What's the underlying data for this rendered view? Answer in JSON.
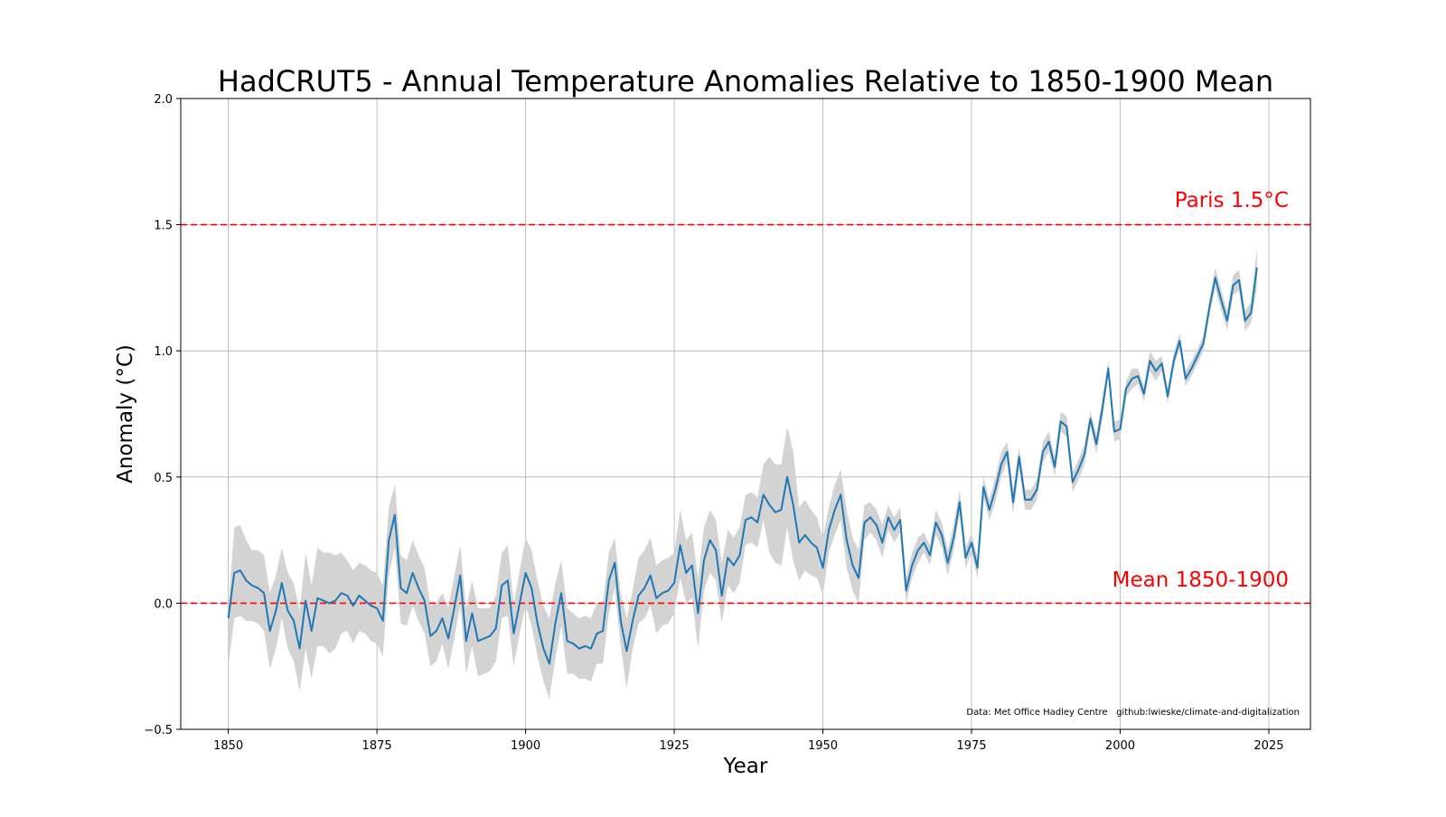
{
  "chart_data": {
    "type": "line",
    "title": "HadCRUT5 - Annual Temperature Anomalies Relative to 1850-1900 Mean",
    "xlabel": "Year",
    "ylabel": "Anomaly (°C)",
    "xlim": [
      1842,
      2032
    ],
    "ylim": [
      -0.5,
      2.0
    ],
    "x_ticks": [
      1850,
      1875,
      1900,
      1925,
      1950,
      1975,
      2000,
      2025
    ],
    "y_ticks": [
      -0.5,
      0.0,
      0.5,
      1.0,
      1.5,
      2.0
    ],
    "y_tick_labels": [
      "−0.5",
      "0.0",
      "0.5",
      "1.0",
      "1.5",
      "2.0"
    ],
    "grid": true,
    "series": [
      {
        "x_start": 1850,
        "x_step": 1,
        "color": "#1f77b4",
        "values": [
          -0.06,
          0.12,
          0.13,
          0.09,
          0.07,
          0.06,
          0.04,
          -0.11,
          -0.03,
          0.08,
          -0.03,
          -0.07,
          -0.18,
          0.01,
          -0.11,
          0.02,
          0.01,
          0.0,
          0.01,
          0.04,
          0.03,
          -0.01,
          0.03,
          0.01,
          -0.01,
          -0.02,
          -0.07,
          0.25,
          0.35,
          0.06,
          0.04,
          0.12,
          0.06,
          0.01,
          -0.13,
          -0.11,
          -0.06,
          -0.14,
          -0.02,
          0.11,
          -0.15,
          -0.04,
          -0.15,
          -0.14,
          -0.13,
          -0.1,
          0.07,
          0.09,
          -0.12,
          0.0,
          0.12,
          0.06,
          -0.08,
          -0.18,
          -0.24,
          -0.08,
          0.04,
          -0.15,
          -0.16,
          -0.18,
          -0.17,
          -0.18,
          -0.12,
          -0.11,
          0.09,
          0.16,
          -0.07,
          -0.19,
          -0.07,
          0.03,
          0.06,
          0.11,
          0.02,
          0.04,
          0.05,
          0.08,
          0.23,
          0.12,
          0.15,
          -0.04,
          0.17,
          0.25,
          0.21,
          0.03,
          0.18,
          0.15,
          0.19,
          0.33,
          0.34,
          0.32,
          0.43,
          0.39,
          0.36,
          0.37,
          0.5,
          0.39,
          0.24,
          0.27,
          0.24,
          0.22,
          0.14,
          0.29,
          0.37,
          0.43,
          0.25,
          0.15,
          0.1,
          0.32,
          0.34,
          0.31,
          0.24,
          0.34,
          0.29,
          0.33,
          0.05,
          0.15,
          0.21,
          0.24,
          0.19,
          0.32,
          0.27,
          0.16,
          0.26,
          0.4,
          0.18,
          0.24,
          0.14,
          0.46,
          0.37,
          0.45,
          0.55,
          0.6,
          0.4,
          0.58,
          0.41,
          0.41,
          0.45,
          0.6,
          0.64,
          0.54,
          0.72,
          0.7,
          0.48,
          0.53,
          0.59,
          0.73,
          0.63,
          0.77,
          0.93,
          0.68,
          0.69,
          0.85,
          0.89,
          0.9,
          0.83,
          0.96,
          0.92,
          0.95,
          0.82,
          0.96,
          1.04,
          0.89,
          0.93,
          0.98,
          1.03,
          1.17,
          1.29,
          1.2,
          1.12,
          1.26,
          1.28,
          1.12,
          1.15,
          1.33
        ]
      }
    ],
    "uncertainty": {
      "color": "#d3d3d3",
      "upper": [
        -0.02,
        0.3,
        0.31,
        0.25,
        0.21,
        0.21,
        0.19,
        0.04,
        0.11,
        0.22,
        0.12,
        0.08,
        -0.03,
        0.2,
        0.07,
        0.22,
        0.2,
        0.2,
        0.19,
        0.2,
        0.17,
        0.13,
        0.16,
        0.15,
        0.13,
        0.12,
        0.07,
        0.38,
        0.47,
        0.19,
        0.17,
        0.25,
        0.19,
        0.14,
        -0.01,
        0.0,
        0.04,
        -0.02,
        0.11,
        0.23,
        -0.02,
        0.09,
        -0.02,
        -0.02,
        -0.02,
        0.03,
        0.2,
        0.23,
        0.0,
        0.13,
        0.26,
        0.21,
        0.09,
        -0.01,
        -0.06,
        0.08,
        0.17,
        -0.02,
        -0.04,
        -0.06,
        -0.05,
        -0.06,
        0.0,
        0.0,
        0.2,
        0.26,
        0.04,
        -0.06,
        0.05,
        0.18,
        0.21,
        0.26,
        0.15,
        0.17,
        0.18,
        0.2,
        0.37,
        0.25,
        0.28,
        0.1,
        0.3,
        0.37,
        0.33,
        0.16,
        0.29,
        0.26,
        0.3,
        0.43,
        0.44,
        0.42,
        0.55,
        0.58,
        0.55,
        0.55,
        0.7,
        0.6,
        0.38,
        0.41,
        0.37,
        0.34,
        0.26,
        0.38,
        0.47,
        0.53,
        0.37,
        0.26,
        0.21,
        0.39,
        0.4,
        0.37,
        0.31,
        0.39,
        0.34,
        0.38,
        0.1,
        0.2,
        0.26,
        0.28,
        0.23,
        0.37,
        0.32,
        0.21,
        0.31,
        0.45,
        0.22,
        0.28,
        0.18,
        0.5,
        0.41,
        0.5,
        0.6,
        0.64,
        0.45,
        0.62,
        0.45,
        0.45,
        0.49,
        0.64,
        0.68,
        0.58,
        0.76,
        0.74,
        0.52,
        0.57,
        0.63,
        0.76,
        0.67,
        0.81,
        0.96,
        0.72,
        0.73,
        0.88,
        0.93,
        0.93,
        0.86,
        1.0,
        0.96,
        0.98,
        0.85,
        0.99,
        1.07,
        0.92,
        0.96,
        1.01,
        1.06,
        1.2,
        1.33,
        1.24,
        1.16,
        1.3,
        1.32,
        1.16,
        1.19,
        1.41
      ],
      "lower": [
        -0.25,
        -0.06,
        -0.05,
        -0.07,
        -0.07,
        -0.08,
        -0.11,
        -0.26,
        -0.18,
        -0.06,
        -0.18,
        -0.23,
        -0.35,
        -0.18,
        -0.3,
        -0.17,
        -0.17,
        -0.2,
        -0.18,
        -0.12,
        -0.11,
        -0.16,
        -0.11,
        -0.12,
        -0.15,
        -0.16,
        -0.21,
        0.11,
        0.22,
        -0.08,
        -0.09,
        -0.01,
        -0.07,
        -0.12,
        -0.25,
        -0.23,
        -0.16,
        -0.26,
        -0.14,
        -0.01,
        -0.28,
        -0.17,
        -0.29,
        -0.28,
        -0.27,
        -0.23,
        -0.06,
        -0.05,
        -0.25,
        -0.12,
        -0.01,
        -0.09,
        -0.21,
        -0.31,
        -0.38,
        -0.22,
        -0.09,
        -0.28,
        -0.28,
        -0.3,
        -0.3,
        -0.31,
        -0.24,
        -0.24,
        -0.04,
        0.06,
        -0.17,
        -0.34,
        -0.18,
        -0.08,
        -0.06,
        -0.01,
        -0.12,
        -0.09,
        -0.08,
        -0.04,
        0.1,
        0.0,
        0.02,
        -0.18,
        0.05,
        0.12,
        0.09,
        -0.08,
        0.07,
        0.04,
        0.08,
        0.23,
        0.24,
        0.22,
        0.33,
        0.2,
        0.16,
        0.15,
        0.3,
        0.17,
        0.09,
        0.13,
        0.11,
        0.1,
        0.03,
        0.2,
        0.27,
        0.33,
        0.14,
        0.05,
        0.0,
        0.25,
        0.28,
        0.25,
        0.18,
        0.29,
        0.24,
        0.28,
        0.0,
        0.1,
        0.16,
        0.2,
        0.15,
        0.27,
        0.22,
        0.11,
        0.21,
        0.35,
        0.14,
        0.2,
        0.1,
        0.42,
        0.33,
        0.4,
        0.5,
        0.56,
        0.35,
        0.54,
        0.37,
        0.37,
        0.41,
        0.56,
        0.6,
        0.5,
        0.68,
        0.66,
        0.44,
        0.49,
        0.55,
        0.7,
        0.59,
        0.73,
        0.9,
        0.64,
        0.65,
        0.82,
        0.85,
        0.87,
        0.8,
        0.92,
        0.88,
        0.92,
        0.79,
        0.93,
        1.01,
        0.86,
        0.9,
        0.95,
        1.0,
        1.14,
        1.25,
        1.16,
        1.08,
        1.22,
        1.24,
        1.08,
        1.11,
        1.25
      ]
    },
    "reference_lines": [
      {
        "y": 1.5,
        "label": "Paris 1.5°C",
        "color": "#ff0000"
      },
      {
        "y": 0.0,
        "label": "Mean 1850-1900",
        "color": "#ff0000"
      }
    ],
    "annotation": "Data: Met Office Hadley Centre   github:lwieske/climate-and-digitalization"
  }
}
